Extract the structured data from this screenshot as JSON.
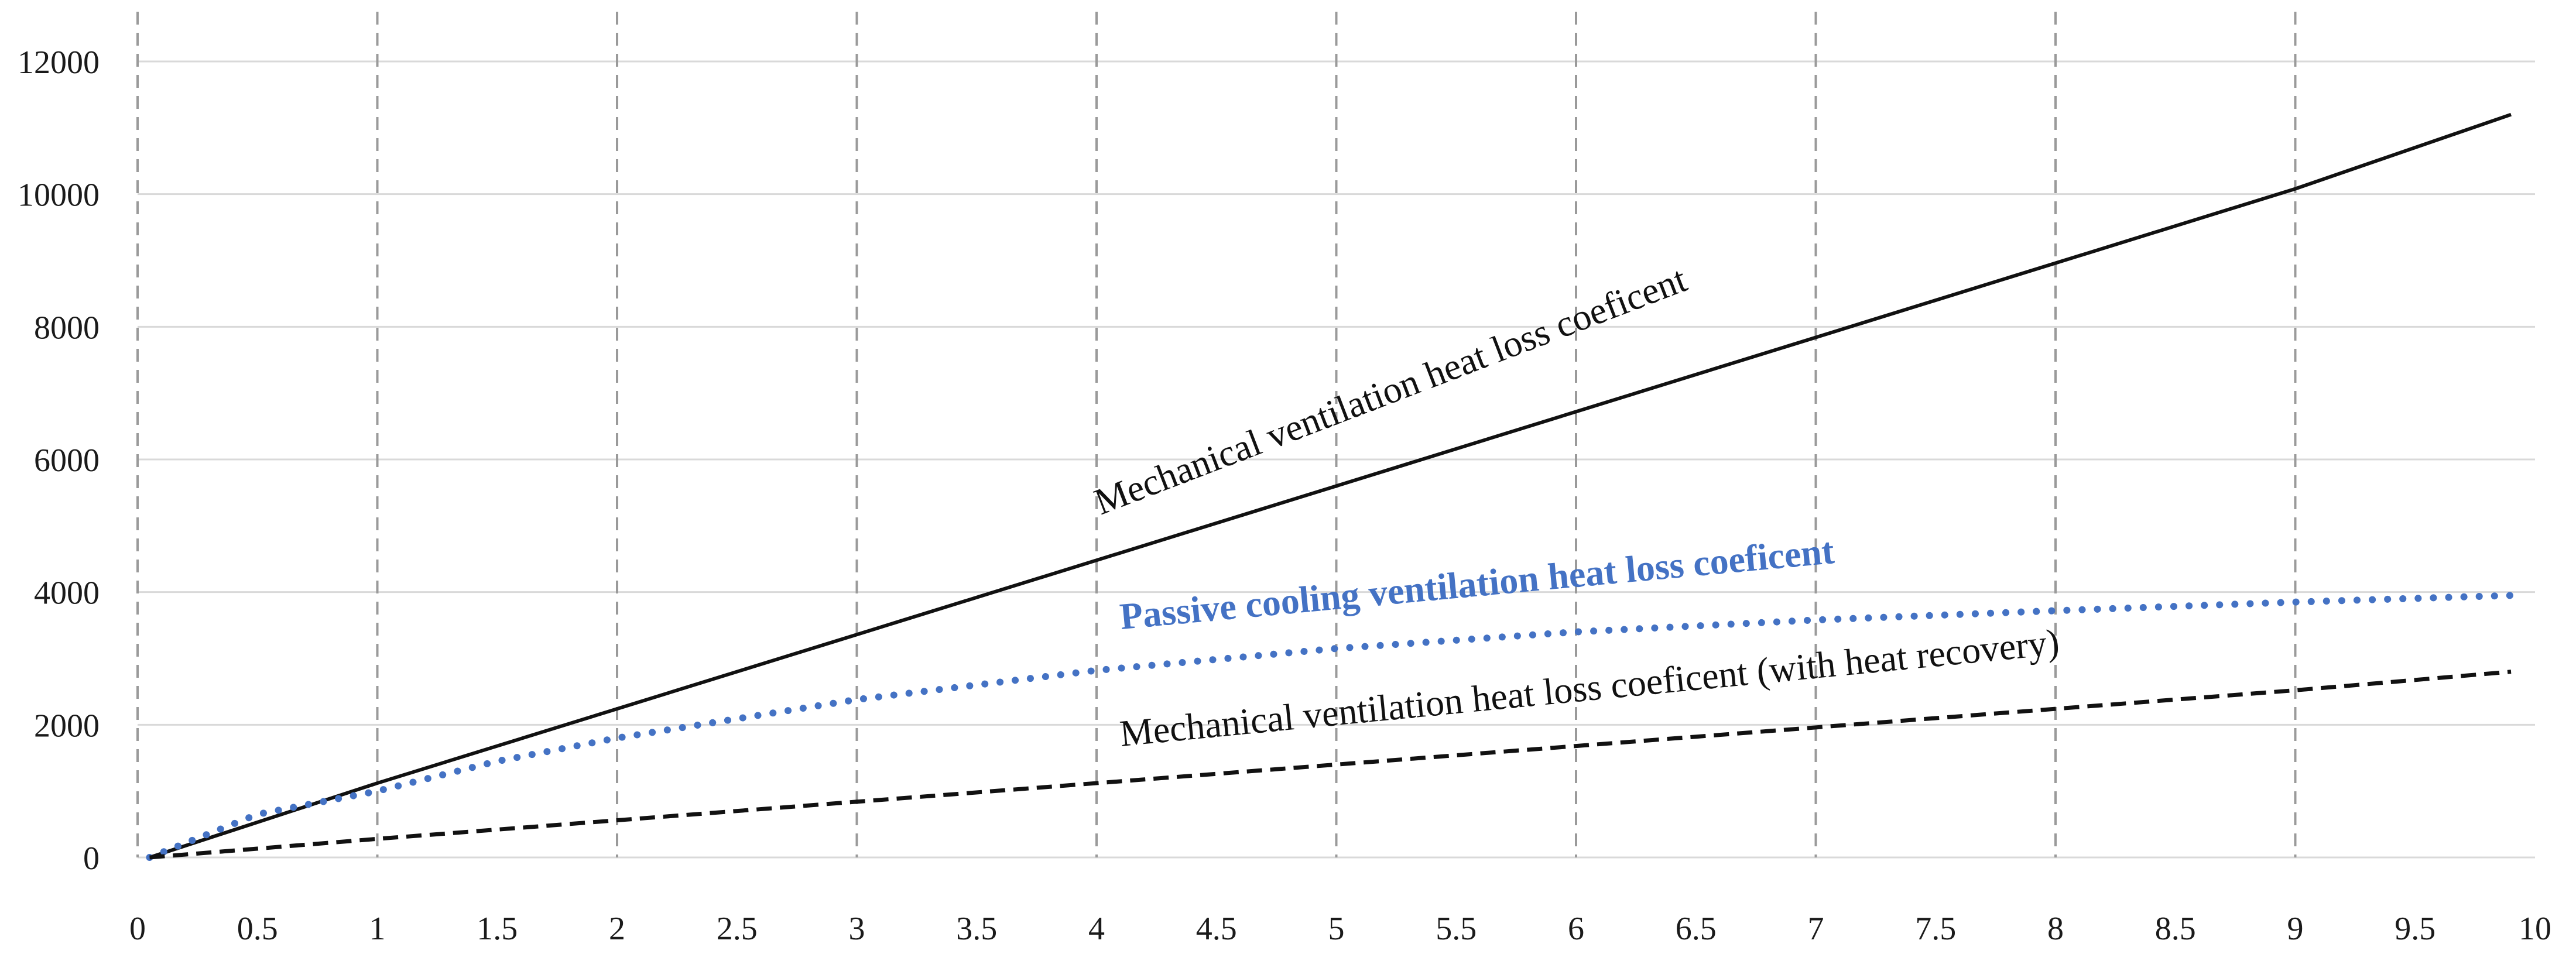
{
  "chart_data": {
    "type": "line",
    "title": "",
    "xlabel": "",
    "ylabel": "",
    "xlim": [
      0,
      10
    ],
    "ylim": [
      0,
      12000
    ],
    "x_ticks": [
      "0",
      "0.5",
      "1",
      "1.5",
      "2",
      "2.5",
      "3",
      "3.5",
      "4",
      "4.5",
      "5",
      "5.5",
      "6",
      "6.5",
      "7",
      "7.5",
      "8",
      "8.5",
      "9",
      "9.5",
      "10"
    ],
    "y_ticks": [
      "0",
      "2000",
      "4000",
      "6000",
      "8000",
      "10000",
      "12000"
    ],
    "vertical_gridlines_at_integers": true,
    "horizontal_gridlines": true,
    "series": [
      {
        "name": "Mechanical ventilation heat loss coeficent",
        "style": "solid",
        "color": "#111111",
        "x": [
          0.05,
          1,
          2,
          3,
          4,
          5,
          6,
          7,
          8,
          9,
          9.9
        ],
        "y": [
          0,
          1120,
          2240,
          3360,
          4480,
          5600,
          6720,
          7840,
          8960,
          10080,
          11200
        ]
      },
      {
        "name": "Passive cooling ventilation heat loss coeficent",
        "style": "dotted",
        "color": "#4472C4",
        "x": [
          0.05,
          0.5,
          1,
          1.5,
          2,
          3,
          4,
          5,
          6,
          7,
          8,
          9,
          9.9
        ],
        "y": [
          0,
          650,
          1000,
          1450,
          1800,
          2380,
          2820,
          3150,
          3400,
          3580,
          3720,
          3850,
          3950
        ]
      },
      {
        "name": "Mechanical ventilation heat loss coeficent (with heat recovery)",
        "style": "dashed",
        "color": "#111111",
        "x": [
          0.05,
          1,
          2,
          3,
          4,
          5,
          6,
          7,
          8,
          9,
          9.9
        ],
        "y": [
          0,
          280,
          560,
          840,
          1120,
          1400,
          1680,
          1960,
          2240,
          2520,
          2800
        ]
      }
    ],
    "annotations": [
      {
        "text": "Mechanical ventilation heat loss coeficent",
        "series": 0
      },
      {
        "text": "Passive cooling ventilation heat loss coeficent",
        "series": 1
      },
      {
        "text": "Mechanical ventilation heat loss coeficent (with heat recovery)",
        "series": 2
      }
    ]
  }
}
